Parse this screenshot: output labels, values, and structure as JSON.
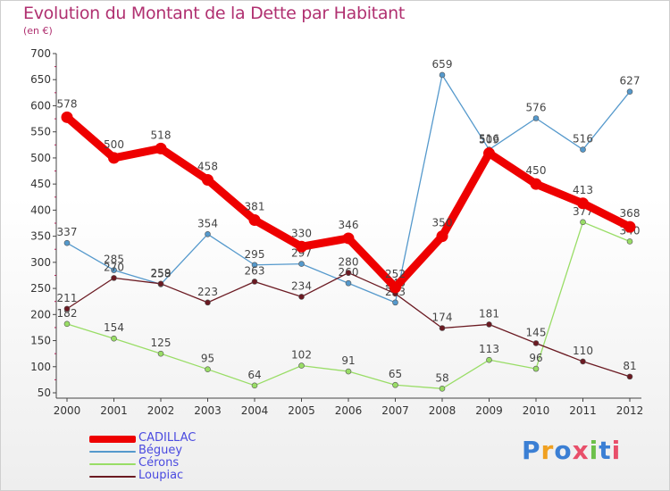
{
  "title": "Evolution du Montant de la Dette par Habitant",
  "subtitle": "(en €)",
  "logo_text": "Proxiti",
  "chart_data": {
    "type": "line",
    "title": "Evolution du Montant de la Dette par Habitant",
    "ylabel": "(en €)",
    "xlabel": "",
    "ylim": [
      50,
      700
    ],
    "yticks": [
      50,
      100,
      150,
      200,
      250,
      300,
      350,
      400,
      450,
      500,
      550,
      600,
      650,
      700
    ],
    "categories": [
      "2000",
      "2001",
      "2002",
      "2003",
      "2004",
      "2005",
      "2006",
      "2007",
      "2008",
      "2009",
      "2010",
      "2011",
      "2012"
    ],
    "grid": false,
    "legend_position": "bottom-left",
    "series": [
      {
        "name": "CADILLAC",
        "color": "#ee0000",
        "values": [
          578,
          500,
          518,
          458,
          381,
          330,
          346,
          252,
          350,
          509,
          450,
          413,
          368
        ]
      },
      {
        "name": "Béguey",
        "color": "#5599cc",
        "values": [
          337,
          285,
          258,
          354,
          295,
          297,
          260,
          223,
          659,
          516,
          576,
          516,
          627
        ]
      },
      {
        "name": "Cérons",
        "color": "#99dd66",
        "values": [
          182,
          154,
          125,
          95,
          64,
          102,
          91,
          65,
          58,
          113,
          96,
          377,
          340
        ]
      },
      {
        "name": "Loupiac",
        "color": "#6b1a22",
        "values": [
          211,
          270,
          259,
          223,
          263,
          234,
          280,
          240,
          174,
          181,
          145,
          110,
          81
        ]
      }
    ]
  }
}
